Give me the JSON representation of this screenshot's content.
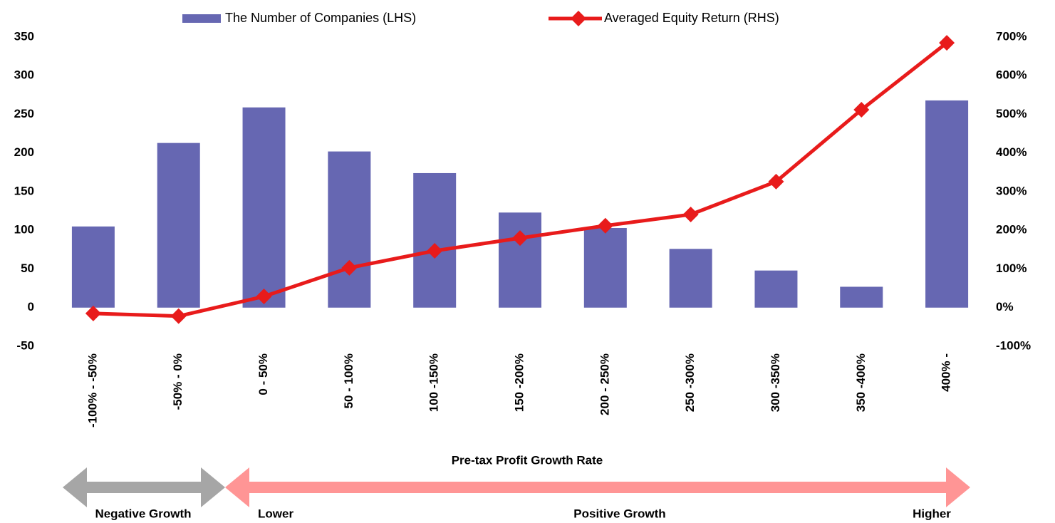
{
  "chart_data": {
    "type": "bar-line",
    "categories": [
      "-100% - -50%",
      "-50% - 0%",
      "0 - 50%",
      "50 - 100%",
      "100 -150%",
      "150 -200%",
      "200 - 250%",
      "250 -300%",
      "300 -350%",
      "350 -400%",
      "400% -"
    ],
    "series": [
      {
        "name": "The Number of Companies (LHS)",
        "type": "bar",
        "color": "#6667b2",
        "axis": "y",
        "values": [
          105,
          213,
          259,
          202,
          174,
          123,
          103,
          76,
          48,
          27,
          268
        ]
      },
      {
        "name": "Averaged Equity Return (RHS)",
        "type": "line",
        "color": "#e81b1b",
        "axis": "y2",
        "values": [
          -15,
          -22,
          29,
          103,
          147,
          180,
          212,
          241,
          326,
          512,
          685
        ]
      }
    ],
    "ylim": [
      -50,
      350
    ],
    "yticks": [
      -50,
      0,
      50,
      100,
      150,
      200,
      250,
      300,
      350
    ],
    "y2lim": [
      -100,
      700
    ],
    "y2ticks": [
      {
        "value": -100,
        "label": "-100%"
      },
      {
        "value": 0,
        "label": "0%"
      },
      {
        "value": 100,
        "label": "100%"
      },
      {
        "value": 200,
        "label": "200%"
      },
      {
        "value": 300,
        "label": "300%"
      },
      {
        "value": 400,
        "label": "400%"
      },
      {
        "value": 500,
        "label": "500%"
      },
      {
        "value": 600,
        "label": "600%"
      },
      {
        "value": 700,
        "label": "700%"
      }
    ],
    "xlabel": "Pre-tax Profit Growth Rate",
    "annotations": [
      "Negative Growth",
      "Lower",
      "Positive Growth",
      "Higher"
    ]
  }
}
